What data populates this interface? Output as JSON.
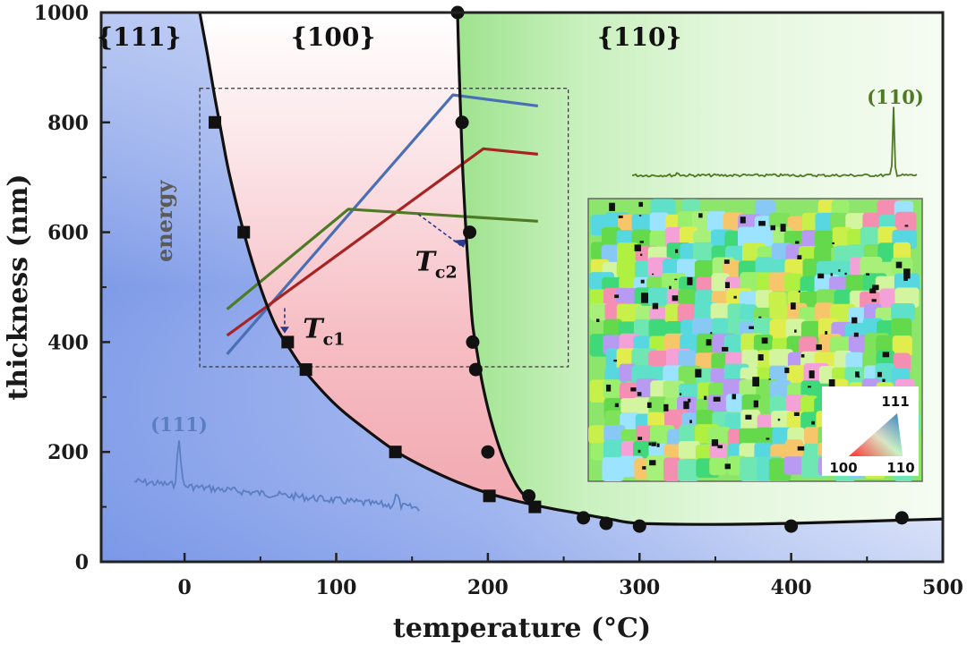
{
  "chart_data": {
    "type": "line",
    "xlabel": "temperature (°C)",
    "ylabel": "thickness (nm)",
    "xlim": [
      -55,
      500
    ],
    "ylim": [
      0,
      1000
    ],
    "x_ticks": [
      0,
      100,
      200,
      300,
      400,
      500
    ],
    "y_ticks": [
      0,
      200,
      400,
      600,
      800,
      1000
    ],
    "regions": [
      {
        "name": "{111}",
        "label": "{111}"
      },
      {
        "name": "{100}",
        "label": "{100}"
      },
      {
        "name": "{110}",
        "label": "{110}"
      }
    ],
    "boundary_111_100": {
      "curve_x": [
        10,
        15,
        20,
        25,
        30,
        40,
        50,
        60,
        70,
        80,
        100,
        120,
        140,
        160,
        180,
        200,
        220,
        240,
        260,
        280,
        300,
        350,
        400,
        450,
        500
      ],
      "curve_y": [
        1000,
        925,
        845,
        770,
        700,
        590,
        500,
        430,
        385,
        345,
        285,
        240,
        200,
        170,
        145,
        125,
        110,
        98,
        88,
        78,
        70,
        68,
        70,
        74,
        78
      ],
      "markers_x": [
        20,
        39,
        68,
        80,
        139,
        201,
        231
      ],
      "markers_y": [
        800,
        600,
        400,
        350,
        200,
        120,
        100
      ],
      "marker": "square"
    },
    "boundary_100_110": {
      "curve_x": [
        180,
        181,
        182,
        183,
        184,
        186,
        188,
        190,
        193,
        196,
        200,
        205,
        210,
        215,
        220,
        225,
        230,
        235
      ],
      "curve_y": [
        1000,
        900,
        820,
        740,
        680,
        580,
        500,
        430,
        380,
        330,
        280,
        230,
        190,
        160,
        135,
        118,
        108,
        98
      ],
      "markers_x": [
        180,
        183,
        188,
        190,
        192,
        200,
        227,
        263,
        278,
        300,
        400,
        473
      ],
      "markers_y": [
        1000,
        800,
        600,
        400,
        350,
        200,
        120,
        80,
        70,
        65,
        65,
        80
      ],
      "marker": "circle"
    },
    "energy_inset": {
      "label": "energy",
      "series": [
        {
          "name": "{111}",
          "color": "#4a6fb5",
          "x": [
            28,
            177,
            233
          ],
          "y": [
            378,
            850,
            830
          ]
        },
        {
          "name": "{100}",
          "color": "#a82424",
          "x": [
            28,
            197,
            233
          ],
          "y": [
            412,
            752,
            742
          ]
        },
        {
          "name": "{110}",
          "color": "#4f7a24",
          "x": [
            28,
            108,
            233
          ],
          "y": [
            460,
            642,
            620
          ]
        }
      ],
      "annotations": [
        {
          "main": "T",
          "sub": "c1",
          "x": 70,
          "y": 440
        },
        {
          "main": "T",
          "sub": "c2",
          "x": 155,
          "y": 633
        }
      ]
    },
    "xrd_111": {
      "label": "(111)",
      "color": "#5b7ec2"
    },
    "xrd_110": {
      "label": "(110)",
      "color": "#4f7a24"
    },
    "ebsd_legend": {
      "top": "111",
      "left": "100",
      "right": "110"
    }
  }
}
